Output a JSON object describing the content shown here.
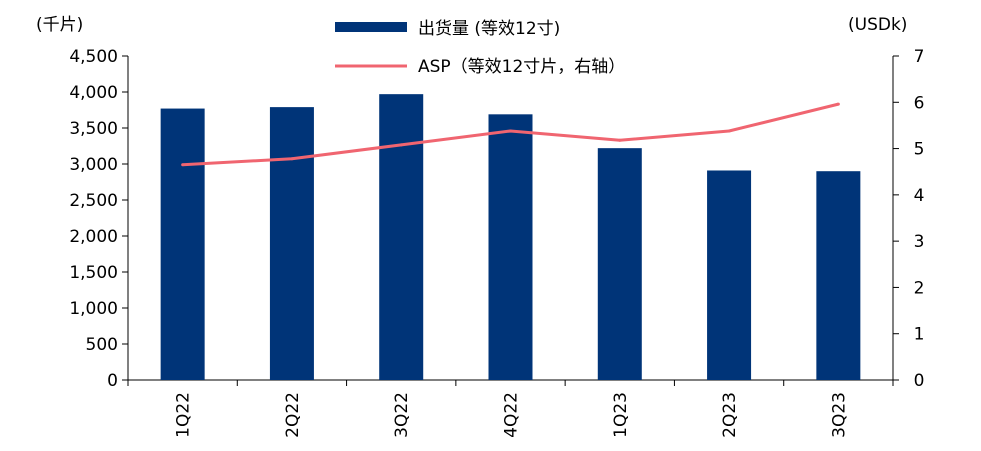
{
  "chart_data": {
    "type": "bar",
    "categories": [
      "1Q22",
      "2Q22",
      "3Q22",
      "4Q22",
      "1Q23",
      "2Q23",
      "3Q23"
    ],
    "series": [
      {
        "name": "出货量 (等效12寸)",
        "type": "bar",
        "axis": "left",
        "color": "#003478",
        "values": [
          3770,
          3790,
          3970,
          3690,
          3220,
          2910,
          2900
        ]
      },
      {
        "name": "ASP（等效12寸片，右轴）",
        "type": "line",
        "axis": "right",
        "color": "#f06570",
        "values": [
          4.65,
          4.78,
          5.08,
          5.38,
          5.18,
          5.38,
          5.96
        ]
      }
    ],
    "left_axis": {
      "unit": "(千片)",
      "ylim": [
        0,
        4500
      ],
      "ticks": [
        "0",
        "500",
        "1,000",
        "1,500",
        "2,000",
        "2,500",
        "3,000",
        "3,500",
        "4,000",
        "4,500"
      ]
    },
    "right_axis": {
      "unit": "(USDk)",
      "ylim": [
        0,
        7
      ],
      "ticks": [
        "0",
        "1",
        "2",
        "3",
        "4",
        "5",
        "6",
        "7"
      ]
    },
    "legend_placement": "top-center",
    "grid": false
  }
}
